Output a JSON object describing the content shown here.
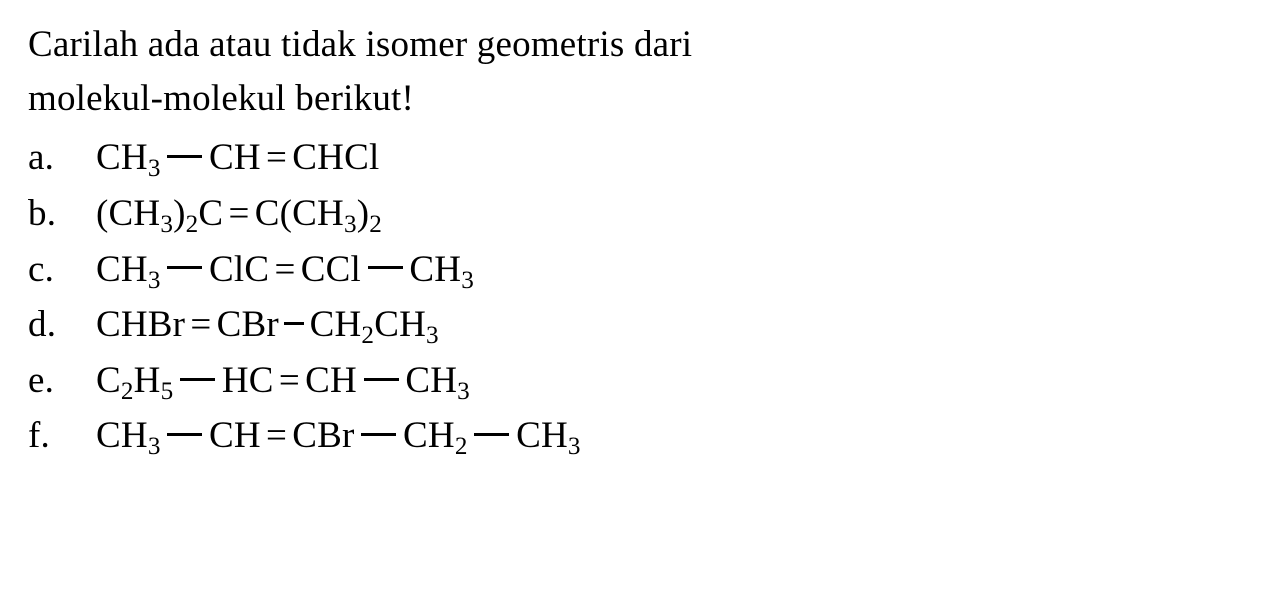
{
  "text_color": "#000000",
  "background_color": "#ffffff",
  "font_family": "Times New Roman",
  "base_fontsize_pt": 28,
  "intro_line1": "Carilah ada atau tidak isomer geometris dari",
  "intro_line2": "molekul-molekul berikut!",
  "items": [
    {
      "label": "a.",
      "tokens": [
        "CH",
        "sub3",
        "dash",
        "CH",
        "eq",
        "CHCl"
      ]
    },
    {
      "label": "b.",
      "tokens": [
        "(CH",
        "sub3",
        ")",
        "sub2",
        "C",
        "eq",
        "C(CH",
        "sub3",
        ")",
        "sub2"
      ]
    },
    {
      "label": "c.",
      "tokens": [
        "CH",
        "sub3",
        "dash",
        "ClC",
        "eq",
        "CCl",
        "dash",
        "CH",
        "sub3"
      ]
    },
    {
      "label": "d.",
      "tokens": [
        "CHBr",
        "eq",
        "CBr",
        "sdash",
        "CH",
        "sub2",
        "CH",
        "sub3"
      ]
    },
    {
      "label": "e.",
      "tokens": [
        "C",
        "sub2",
        "H",
        "sub5",
        "dash",
        "HC",
        "eq",
        "CH",
        "dash",
        "CH",
        "sub3"
      ]
    },
    {
      "label": "f.",
      "tokens": [
        "CH",
        "sub3",
        "dash",
        "CH",
        "eq",
        "CBr",
        "dash",
        "CH",
        "sub2",
        "dash",
        "CH",
        "sub3"
      ]
    }
  ]
}
